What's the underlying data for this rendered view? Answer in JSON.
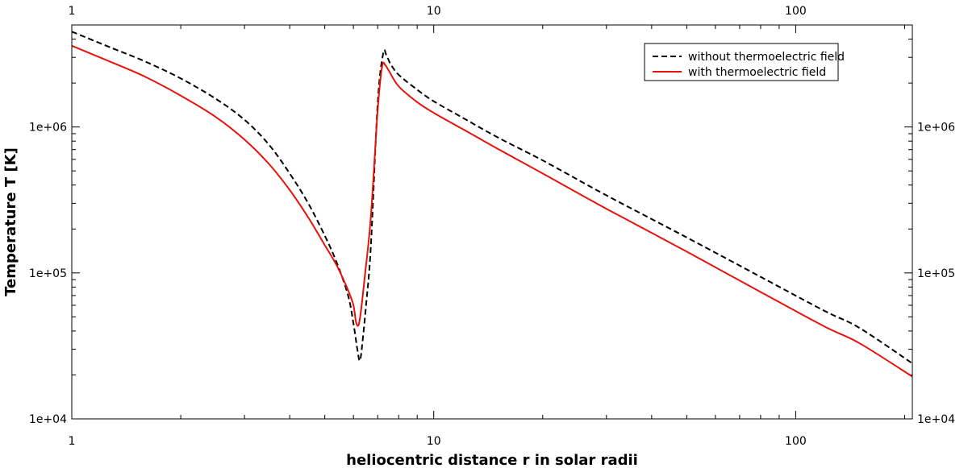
{
  "chart_data": {
    "type": "line",
    "title": "",
    "xlabel": "heliocentric distance r in solar radii",
    "ylabel": "Temperature T [K]",
    "xscale": "log",
    "yscale": "log",
    "xlim": [
      1,
      210
    ],
    "ylim": [
      10000,
      5000000
    ],
    "grid": false,
    "legend_position": "top-right",
    "x_ticks": [
      {
        "value": 1,
        "label": "1"
      },
      {
        "value": 10,
        "label": "10"
      },
      {
        "value": 100,
        "label": "100"
      }
    ],
    "y_ticks": [
      {
        "value": 10000,
        "label": "1e+04"
      },
      {
        "value": 100000,
        "label": "1e+05"
      },
      {
        "value": 1000000,
        "label": "1e+06"
      }
    ],
    "series": [
      {
        "name": "without thermoelectric field",
        "color": "#000000",
        "style": "dashed",
        "x": [
          1,
          1.3,
          1.6,
          2,
          2.5,
          3,
          3.5,
          4,
          4.5,
          5,
          5.4,
          5.8,
          6.0,
          6.15,
          6.25,
          6.35,
          6.5,
          6.7,
          7.0,
          7.25,
          7.4,
          7.6,
          8,
          9,
          10,
          12,
          15,
          20,
          30,
          50,
          80,
          120,
          150,
          210
        ],
        "y": [
          4500000,
          3450000,
          2800000,
          2150000,
          1560000,
          1120000,
          760000,
          480000,
          300000,
          180000,
          117000,
          70000,
          45000,
          30000,
          25000,
          33000,
          60000,
          150000,
          1450000,
          3200000,
          3100000,
          2700000,
          2280000,
          1800000,
          1500000,
          1160000,
          850000,
          590000,
          340000,
          175000,
          94000,
          55000,
          42000,
          24000
        ]
      },
      {
        "name": "with thermoelectric field",
        "color": "#e8120c",
        "style": "solid",
        "x": [
          1,
          1.3,
          1.6,
          2,
          2.5,
          3,
          3.5,
          4,
          4.5,
          5,
          5.4,
          5.8,
          6.0,
          6.1,
          6.2,
          6.3,
          6.45,
          6.7,
          7.0,
          7.2,
          7.35,
          7.5,
          8,
          9,
          10,
          12,
          15,
          20,
          30,
          50,
          80,
          120,
          150,
          210
        ],
        "y": [
          3600000,
          2750000,
          2200000,
          1640000,
          1170000,
          820000,
          560000,
          370000,
          240000,
          155000,
          112000,
          76000,
          60000,
          46000,
          44000,
          56000,
          95000,
          240000,
          1300000,
          2600000,
          2650000,
          2450000,
          1900000,
          1480000,
          1250000,
          970000,
          710000,
          480000,
          275000,
          140000,
          74000,
          43000,
          33000,
          19500
        ]
      }
    ]
  }
}
